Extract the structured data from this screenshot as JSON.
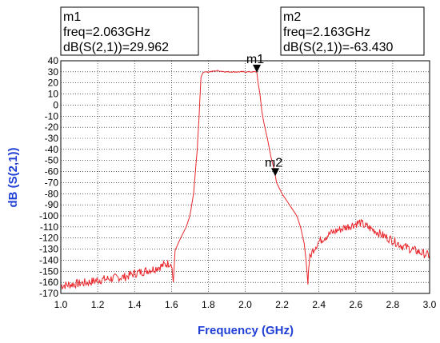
{
  "chart_data": {
    "type": "line",
    "xlabel": "Frequency (GHz)",
    "ylabel": "dB (S(2,1))",
    "xlim": [
      1.0,
      3.0
    ],
    "ylim": [
      -170,
      40
    ],
    "x_ticks": [
      "1.0",
      "1.2",
      "1.4",
      "1.6",
      "1.8",
      "2.0",
      "2.2",
      "2.4",
      "2.6",
      "2.8",
      "3.0"
    ],
    "y_ticks": [
      "40",
      "30",
      "20",
      "10",
      "0",
      "-10",
      "-20",
      "-30",
      "-40",
      "-50",
      "-60",
      "-70",
      "-80",
      "-90",
      "-100",
      "-110",
      "-120",
      "-130",
      "-140",
      "-150",
      "-160",
      "-170"
    ],
    "grid": true,
    "series": [
      {
        "color": "#e8262b",
        "x": [
          1.0,
          1.05,
          1.1,
          1.15,
          1.2,
          1.25,
          1.3,
          1.35,
          1.4,
          1.45,
          1.5,
          1.55,
          1.58,
          1.6,
          1.61,
          1.62,
          1.65,
          1.68,
          1.7,
          1.72,
          1.74,
          1.75,
          1.76,
          1.77,
          1.78,
          1.8,
          1.85,
          1.9,
          1.95,
          2.0,
          2.03,
          2.05,
          2.063,
          2.07,
          2.08,
          2.09,
          2.1,
          2.12,
          2.14,
          2.16,
          2.163,
          2.17,
          2.2,
          2.24,
          2.28,
          2.3,
          2.32,
          2.33,
          2.335,
          2.34,
          2.345,
          2.35,
          2.37,
          2.4,
          2.45,
          2.5,
          2.55,
          2.6,
          2.62,
          2.65,
          2.7,
          2.75,
          2.8,
          2.85,
          2.9,
          2.95,
          3.0
        ],
        "y": [
          -163,
          -162,
          -161,
          -160,
          -158,
          -157,
          -156,
          -155,
          -152,
          -150,
          -148,
          -145,
          -143,
          -142,
          -160,
          -131,
          -120,
          -110,
          -100,
          -80,
          -40,
          -10,
          25,
          29,
          30,
          30,
          31,
          30,
          30,
          30,
          30,
          30,
          29.962,
          20,
          10,
          -5,
          -15,
          -30,
          -47,
          -60,
          -63.43,
          -70,
          -80,
          -90,
          -100,
          -110,
          -125,
          -140,
          -150,
          -162,
          -145,
          -138,
          -130,
          -123,
          -117,
          -113,
          -110,
          -107,
          -106,
          -109,
          -113,
          -118,
          -122,
          -127,
          -130,
          -133,
          -136
        ]
      }
    ],
    "markers": [
      {
        "name": "m1",
        "line1": "m1",
        "line2": "freq=2.063GHz",
        "line3": "dB(S(2,1))=29.962",
        "x": 2.063,
        "y": 29.962
      },
      {
        "name": "m2",
        "line1": "m2",
        "line2": "freq=2.163GHz",
        "line3": "dB(S(2,1))=-63.430",
        "x": 2.163,
        "y": -63.43
      }
    ]
  }
}
